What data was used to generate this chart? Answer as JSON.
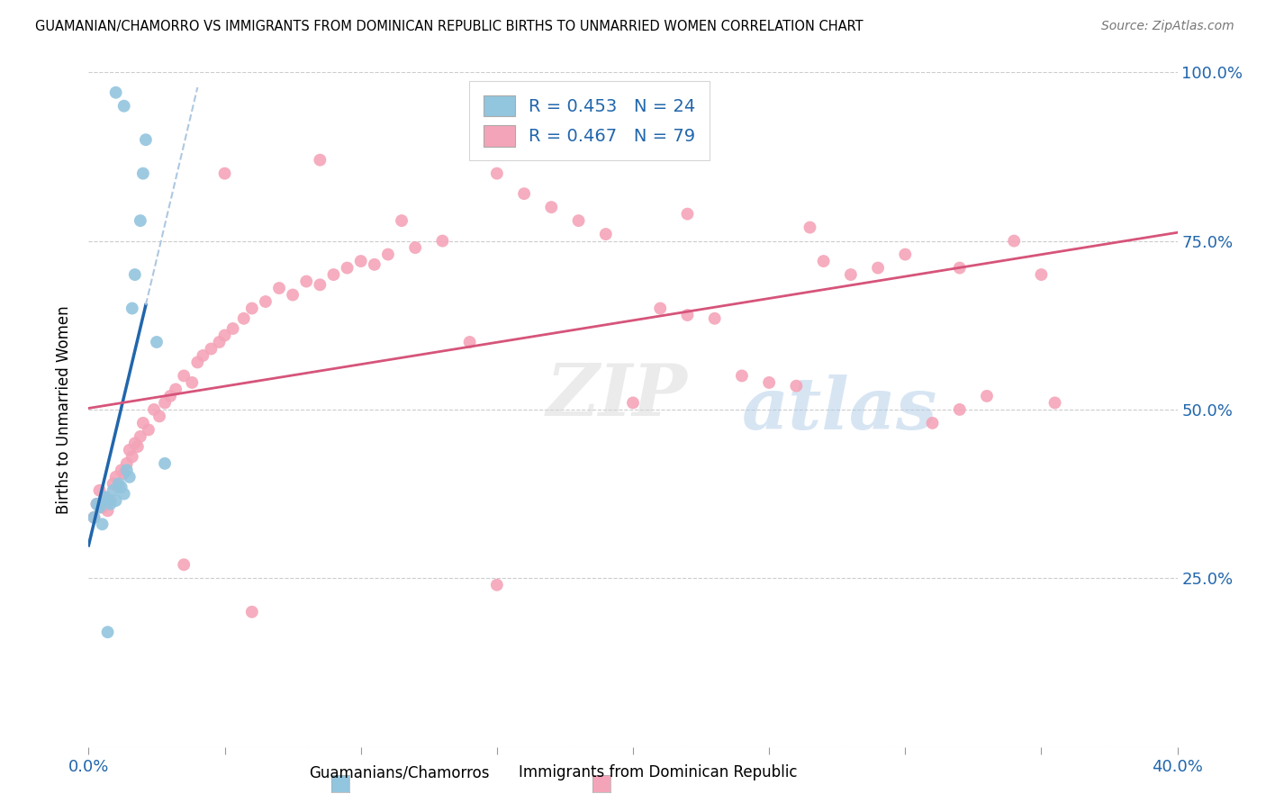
{
  "title": "GUAMANIAN/CHAMORRO VS IMMIGRANTS FROM DOMINICAN REPUBLIC BIRTHS TO UNMARRIED WOMEN CORRELATION CHART",
  "source": "Source: ZipAtlas.com",
  "ylabel_axis": "Births to Unmarried Women",
  "legend_label1": "Guamanians/Chamorros",
  "legend_label2": "Immigrants from Dominican Republic",
  "R1": 0.453,
  "N1": 24,
  "R2": 0.467,
  "N2": 79,
  "color_blue": "#92c5de",
  "color_blue_line": "#2166ac",
  "color_pink": "#f4a4b8",
  "color_pink_line": "#d6547a",
  "color_blue_text": "#2166ac",
  "watermark_text": "ZIPatlas",
  "xmin": 0.0,
  "xmax": 40.0,
  "ymin": 0.0,
  "ymax": 100.0,
  "yticks": [
    0,
    25,
    50,
    75,
    100
  ],
  "ytick_labels": [
    "",
    "25.0%",
    "50.0%",
    "75.0%",
    "100.0%"
  ],
  "xtick_left_label": "0.0%",
  "xtick_right_label": "40.0%",
  "blue_x": [
    0.2,
    0.3,
    0.4,
    0.5,
    0.6,
    0.7,
    0.8,
    0.9,
    1.0,
    1.1,
    1.2,
    1.3,
    1.4,
    1.5,
    1.6,
    1.7,
    1.9,
    2.0,
    2.1,
    2.5,
    2.8,
    1.0,
    1.3,
    0.7
  ],
  "blue_y": [
    34.0,
    36.0,
    35.5,
    33.0,
    37.0,
    36.5,
    36.0,
    38.0,
    36.5,
    39.0,
    38.5,
    37.5,
    41.0,
    40.0,
    65.0,
    70.0,
    78.0,
    85.0,
    90.0,
    60.0,
    42.0,
    97.0,
    95.0,
    17.0
  ],
  "pink_x": [
    0.2,
    0.3,
    0.4,
    0.5,
    0.6,
    0.7,
    0.8,
    0.9,
    1.0,
    1.1,
    1.2,
    1.3,
    1.4,
    1.5,
    1.6,
    1.7,
    1.8,
    1.9,
    2.0,
    2.2,
    2.4,
    2.6,
    2.8,
    3.0,
    3.2,
    3.5,
    3.8,
    4.0,
    4.2,
    4.5,
    4.8,
    5.0,
    5.3,
    5.7,
    6.0,
    6.5,
    7.0,
    7.5,
    8.0,
    8.5,
    9.0,
    9.5,
    10.0,
    10.5,
    11.0,
    12.0,
    13.0,
    14.0,
    15.0,
    16.0,
    17.0,
    18.0,
    19.0,
    20.0,
    21.0,
    22.0,
    23.0,
    24.0,
    25.0,
    26.0,
    27.0,
    28.0,
    29.0,
    30.0,
    31.0,
    32.0,
    33.0,
    34.0,
    35.0,
    5.0,
    8.5,
    11.5,
    22.0,
    26.5,
    32.0,
    15.0,
    6.0,
    3.5,
    35.5
  ],
  "pink_y": [
    34.0,
    36.0,
    38.0,
    35.5,
    37.0,
    35.0,
    36.5,
    39.0,
    40.0,
    38.5,
    41.0,
    40.5,
    42.0,
    44.0,
    43.0,
    45.0,
    44.5,
    46.0,
    48.0,
    47.0,
    50.0,
    49.0,
    51.0,
    52.0,
    53.0,
    55.0,
    54.0,
    57.0,
    58.0,
    59.0,
    60.0,
    61.0,
    62.0,
    63.5,
    65.0,
    66.0,
    68.0,
    67.0,
    69.0,
    68.5,
    70.0,
    71.0,
    72.0,
    71.5,
    73.0,
    74.0,
    75.0,
    60.0,
    85.0,
    82.0,
    80.0,
    78.0,
    76.0,
    51.0,
    65.0,
    64.0,
    63.5,
    55.0,
    54.0,
    53.5,
    72.0,
    70.0,
    71.0,
    73.0,
    48.0,
    50.0,
    52.0,
    75.0,
    70.0,
    85.0,
    87.0,
    78.0,
    79.0,
    77.0,
    71.0,
    24.0,
    20.0,
    27.0,
    51.0
  ]
}
